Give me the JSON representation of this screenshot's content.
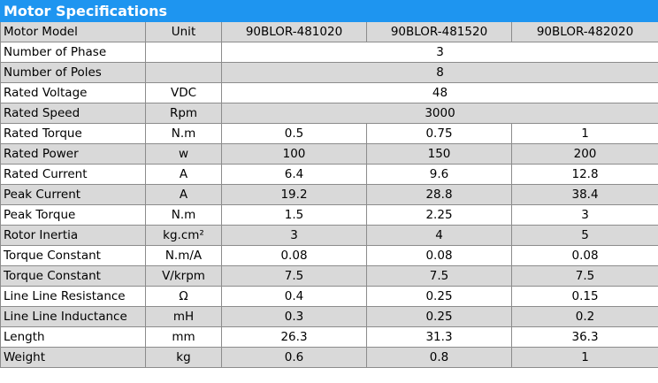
{
  "title": "Motor Specifications",
  "header": {
    "param_label": "Motor Model",
    "unit_label": "Unit",
    "models": [
      "90BLOR-481020",
      "90BLOR-481520",
      "90BLOR-482020"
    ]
  },
  "rows": [
    {
      "param": "Number of Phase",
      "unit": "",
      "merged_value": "3"
    },
    {
      "param": "Number of Poles",
      "unit": "",
      "merged_value": "8"
    },
    {
      "param": "Rated Voltage",
      "unit": "VDC",
      "merged_value": "48"
    },
    {
      "param": "Rated Speed",
      "unit": "Rpm",
      "merged_value": "3000"
    },
    {
      "param": "Rated Torque",
      "unit": "N.m",
      "values": [
        "0.5",
        "0.75",
        "1"
      ]
    },
    {
      "param": "Rated Power",
      "unit": "w",
      "values": [
        "100",
        "150",
        "200"
      ]
    },
    {
      "param": "Rated Current",
      "unit": "A",
      "values": [
        "6.4",
        "9.6",
        "12.8"
      ]
    },
    {
      "param": "Peak Current",
      "unit": "A",
      "values": [
        "19.2",
        "28.8",
        "38.4"
      ]
    },
    {
      "param": "Peak Torque",
      "unit": "N.m",
      "values": [
        "1.5",
        "2.25",
        "3"
      ]
    },
    {
      "param": "Rotor Inertia",
      "unit": "kg.cm²",
      "values": [
        "3",
        "4",
        "5"
      ]
    },
    {
      "param": "Torque Constant",
      "unit": "N.m/A",
      "values": [
        "0.08",
        "0.08",
        "0.08"
      ]
    },
    {
      "param": "Torque Constant",
      "unit": "V/krpm",
      "values": [
        "7.5",
        "7.5",
        "7.5"
      ]
    },
    {
      "param": "Line Line Resistance",
      "unit": "Ω",
      "values": [
        "0.4",
        "0.25",
        "0.15"
      ]
    },
    {
      "param": "Line Line Inductance",
      "unit": "mH",
      "values": [
        "0.3",
        "0.25",
        "0.2"
      ]
    },
    {
      "param": "Length",
      "unit": "mm",
      "values": [
        "26.3",
        "31.3",
        "36.3"
      ]
    },
    {
      "param": "Weight",
      "unit": "kg",
      "values": [
        "0.6",
        "0.8",
        "1"
      ]
    }
  ],
  "colors": {
    "title_background": "#1e95f0",
    "title_text": "#ffffff",
    "stripe_background": "#d9d9d9",
    "border": "#8c8c8c"
  }
}
